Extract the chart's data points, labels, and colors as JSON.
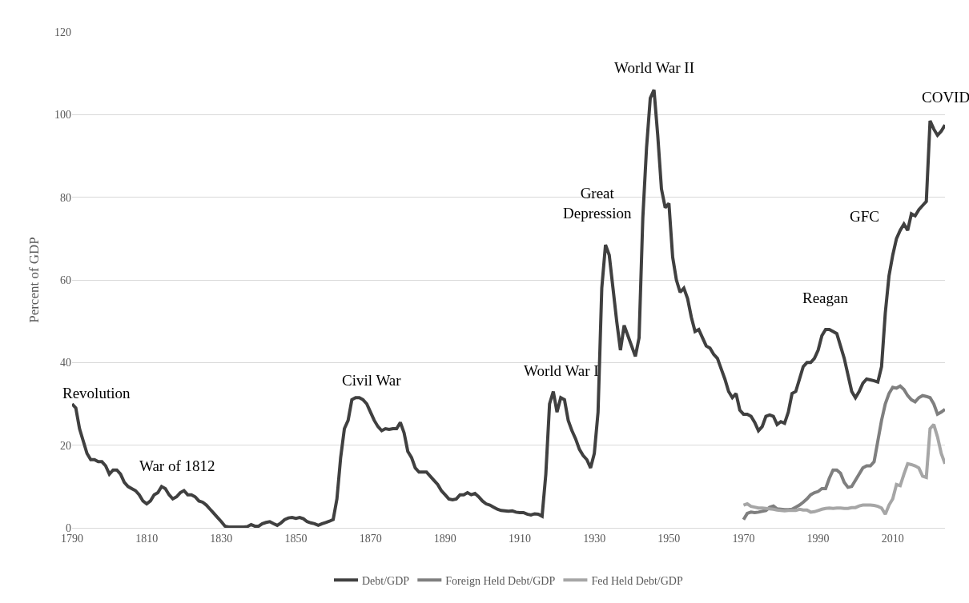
{
  "chart_data": {
    "type": "line",
    "ylabel": "Percent of GDP",
    "xlim": [
      1790,
      2024
    ],
    "xticks": [
      1790,
      1810,
      1830,
      1850,
      1870,
      1890,
      1910,
      1930,
      1950,
      1970,
      1990,
      2010
    ],
    "ylim": [
      0,
      120
    ],
    "yticks": [
      0,
      20,
      40,
      60,
      80,
      100,
      120
    ],
    "grid": "y",
    "legend": "bottom",
    "marker": "none",
    "line_style": "solid",
    "series": [
      {
        "name": "Debt/GDP",
        "color": "#404040",
        "x": [
          1790,
          1791,
          1792,
          1793,
          1794,
          1795,
          1796,
          1797,
          1798,
          1799,
          1800,
          1801,
          1802,
          1803,
          1804,
          1805,
          1806,
          1807,
          1808,
          1809,
          1810,
          1811,
          1812,
          1813,
          1814,
          1815,
          1816,
          1817,
          1818,
          1819,
          1820,
          1821,
          1822,
          1823,
          1824,
          1825,
          1826,
          1827,
          1828,
          1829,
          1830,
          1831,
          1832,
          1833,
          1834,
          1835,
          1836,
          1837,
          1838,
          1839,
          1840,
          1841,
          1842,
          1843,
          1844,
          1845,
          1846,
          1847,
          1848,
          1849,
          1850,
          1851,
          1852,
          1853,
          1854,
          1855,
          1856,
          1857,
          1858,
          1859,
          1860,
          1861,
          1862,
          1863,
          1864,
          1865,
          1866,
          1867,
          1868,
          1869,
          1870,
          1871,
          1872,
          1873,
          1874,
          1875,
          1876,
          1877,
          1878,
          1879,
          1880,
          1881,
          1882,
          1883,
          1884,
          1885,
          1886,
          1887,
          1888,
          1889,
          1890,
          1891,
          1892,
          1893,
          1894,
          1895,
          1896,
          1897,
          1898,
          1899,
          1900,
          1901,
          1902,
          1903,
          1904,
          1905,
          1906,
          1907,
          1908,
          1909,
          1910,
          1911,
          1912,
          1913,
          1914,
          1915,
          1916,
          1917,
          1918,
          1919,
          1920,
          1921,
          1922,
          1923,
          1924,
          1925,
          1926,
          1927,
          1928,
          1929,
          1930,
          1931,
          1932,
          1933,
          1934,
          1935,
          1936,
          1937,
          1938,
          1939,
          1940,
          1941,
          1942,
          1943,
          1944,
          1945,
          1946,
          1947,
          1948,
          1949,
          1950,
          1951,
          1952,
          1953,
          1954,
          1955,
          1956,
          1957,
          1958,
          1959,
          1960,
          1961,
          1962,
          1963,
          1964,
          1965,
          1966,
          1967,
          1968,
          1969,
          1970,
          1971,
          1972,
          1973,
          1974,
          1975,
          1976,
          1977,
          1978,
          1979,
          1980,
          1981,
          1982,
          1983,
          1984,
          1985,
          1986,
          1987,
          1988,
          1989,
          1990,
          1991,
          1992,
          1993,
          1994,
          1995,
          1996,
          1997,
          1998,
          1999,
          2000,
          2001,
          2002,
          2003,
          2004,
          2005,
          2006,
          2007,
          2008,
          2009,
          2010,
          2011,
          2012,
          2013,
          2014,
          2015,
          2016,
          2017,
          2018,
          2019,
          2020,
          2021,
          2022,
          2023,
          2024
        ],
        "values": [
          30,
          29,
          24,
          21,
          18,
          16.5,
          16.5,
          16,
          16,
          15,
          13,
          14,
          14,
          13,
          11,
          10,
          9.5,
          9,
          8,
          6.5,
          5.8,
          6.5,
          8,
          8.5,
          10,
          9.5,
          8,
          7,
          7.5,
          8.5,
          9,
          8,
          8,
          7.5,
          6.5,
          6.2,
          5.5,
          4.5,
          3.5,
          2.5,
          1.5,
          0.4,
          0.2,
          0.2,
          0.2,
          0.2,
          0.2,
          0.3,
          0.8,
          0.4,
          0.4,
          1,
          1.3,
          1.5,
          1,
          0.6,
          1.2,
          2,
          2.4,
          2.5,
          2.3,
          2.5,
          2.2,
          1.5,
          1.2,
          1,
          0.6,
          1,
          1.3,
          1.6,
          2,
          7,
          17,
          24,
          26,
          31,
          31.5,
          31.5,
          31,
          30,
          28,
          26,
          24.5,
          23.5,
          24,
          23.8,
          24,
          24,
          25.5,
          23,
          18.5,
          17,
          14.5,
          13.5,
          13.5,
          13.5,
          12.5,
          11.5,
          10.5,
          9,
          8,
          7,
          6.8,
          7,
          8,
          8,
          8.5,
          8,
          8.3,
          7.5,
          6.5,
          5.8,
          5.5,
          5,
          4.5,
          4.2,
          4.1,
          4,
          4.1,
          3.8,
          3.7,
          3.7,
          3.3,
          3.1,
          3.4,
          3.3,
          2.8,
          13,
          30,
          33,
          28,
          31.5,
          31,
          26,
          23.5,
          21.5,
          19,
          17.5,
          16.5,
          14.5,
          18,
          28,
          58,
          68.5,
          66,
          58,
          50,
          43,
          49,
          46.5,
          44,
          41.5,
          46,
          75,
          92,
          104,
          106,
          95,
          82,
          77.5,
          78.5,
          65.5,
          60,
          57,
          58,
          55.5,
          51,
          47.5,
          48,
          46,
          44,
          43.5,
          42,
          41,
          38.5,
          36,
          33,
          31.5,
          32.5,
          28.5,
          27.5,
          27.5,
          27,
          25.5,
          23.5,
          24.5,
          27,
          27.3,
          27,
          25,
          25.7,
          25.3,
          28,
          32.5,
          33,
          36,
          39,
          40,
          40,
          41,
          43,
          46.5,
          48,
          48,
          47.5,
          47,
          44,
          41,
          37,
          33,
          31.5,
          33,
          35,
          36,
          35.8,
          35.6,
          35.3,
          39,
          52,
          61,
          66,
          70,
          72,
          73.5,
          72,
          76,
          75.5,
          77,
          78,
          79,
          98.5,
          96.5,
          95,
          96,
          97.5
        ]
      },
      {
        "name": "Foreign Held Debt/GDP",
        "color": "#7f7f7f",
        "x": [
          1970,
          1971,
          1972,
          1973,
          1974,
          1975,
          1976,
          1977,
          1978,
          1979,
          1980,
          1981,
          1982,
          1983,
          1984,
          1985,
          1986,
          1987,
          1988,
          1989,
          1990,
          1991,
          1992,
          1993,
          1994,
          1995,
          1996,
          1997,
          1998,
          1999,
          2000,
          2001,
          2002,
          2003,
          2004,
          2005,
          2006,
          2007,
          2008,
          2009,
          2010,
          2011,
          2012,
          2013,
          2014,
          2015,
          2016,
          2017,
          2018,
          2019,
          2020,
          2021,
          2022,
          2023,
          2024
        ],
        "values": [
          2,
          3.5,
          3.8,
          3.7,
          3.8,
          4,
          4.2,
          5,
          5.3,
          4.6,
          4.5,
          4.4,
          4.4,
          4.5,
          5,
          5.5,
          6.2,
          7,
          8,
          8.5,
          8.8,
          9.5,
          9.5,
          12,
          14,
          14,
          13.2,
          11,
          9.8,
          10,
          11.5,
          13,
          14.5,
          15,
          15,
          16,
          21,
          26,
          30,
          32.5,
          34,
          33.8,
          34.3,
          33.5,
          32,
          31,
          30.5,
          31.5,
          32,
          31.8,
          31.5,
          30,
          27.5,
          28,
          28.7
        ]
      },
      {
        "name": "Fed Held Debt/GDP",
        "color": "#a6a6a6",
        "x": [
          1970,
          1971,
          1972,
          1973,
          1974,
          1975,
          1976,
          1977,
          1978,
          1979,
          1980,
          1981,
          1982,
          1983,
          1984,
          1985,
          1986,
          1987,
          1988,
          1989,
          1990,
          1991,
          1992,
          1993,
          1994,
          1995,
          1996,
          1997,
          1998,
          1999,
          2000,
          2001,
          2002,
          2003,
          2004,
          2005,
          2006,
          2007,
          2008,
          2009,
          2010,
          2011,
          2012,
          2013,
          2014,
          2015,
          2016,
          2017,
          2018,
          2019,
          2020,
          2021,
          2022,
          2023,
          2024
        ],
        "values": [
          5.5,
          5.8,
          5.2,
          5,
          4.8,
          4.8,
          4.7,
          4.6,
          4.5,
          4.3,
          4.2,
          4.1,
          4.2,
          4.2,
          4.2,
          4.5,
          4.3,
          4.3,
          3.8,
          3.9,
          4.2,
          4.5,
          4.7,
          4.8,
          4.7,
          4.8,
          4.8,
          4.7,
          4.7,
          4.9,
          4.9,
          5.3,
          5.5,
          5.5,
          5.5,
          5.4,
          5.2,
          4.8,
          3.3,
          5.5,
          7,
          10.5,
          10.2,
          13,
          15.5,
          15.3,
          15,
          14.5,
          12.5,
          12.2,
          24,
          25,
          22,
          18,
          15.5
        ]
      }
    ],
    "annotations": [
      {
        "text": "Revolution",
        "x": 1790,
        "y": 30
      },
      {
        "text": "War of 1812",
        "x": 1814,
        "y": 10
      },
      {
        "text": "Civil War",
        "x": 1866,
        "y": 31.5
      },
      {
        "text": "World War I",
        "x": 1919,
        "y": 33
      },
      {
        "text": "Great\nDepression",
        "x": 1933,
        "y": 68.5
      },
      {
        "text": "World War II",
        "x": 1946,
        "y": 106
      },
      {
        "text": "Reagan",
        "x": 1992,
        "y": 48
      },
      {
        "text": "GFC",
        "x": 2011,
        "y": 70
      },
      {
        "text": "COVID",
        "x": 2020,
        "y": 98.5
      }
    ]
  }
}
